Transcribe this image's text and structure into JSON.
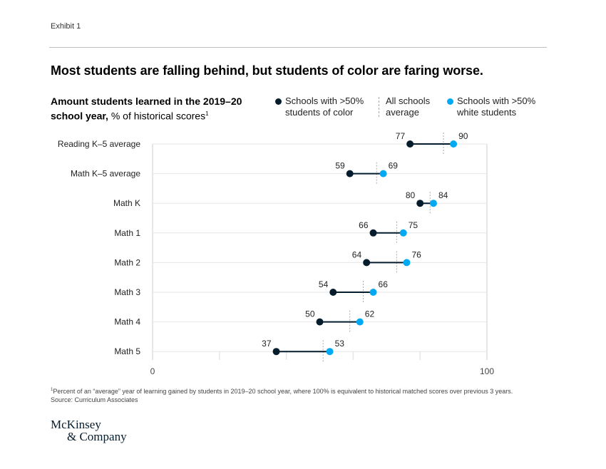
{
  "exhibit_label": "Exhibit 1",
  "title": "Most students are falling behind, but students of color are faring worse.",
  "subtitle": {
    "bold": "Amount students learned in the 2019–20 school year,",
    "normal": " % of historical scores",
    "footnote_marker": "1"
  },
  "legend": {
    "color_schools": {
      "line1": "Schools with >50%",
      "line2": "students of color"
    },
    "average": {
      "line1": "All schools",
      "line2": "average"
    },
    "white_schools": {
      "line1": "Schools with >50%",
      "line2": "white students"
    }
  },
  "colors": {
    "students_of_color": "#051c2c",
    "white_students": "#00a9f4",
    "average": "#aaaaaa",
    "grid": "#e6e6e6"
  },
  "footnote": {
    "marker": "1",
    "text": "Percent of an “average” year of learning gained by students in 2019–20 school year, where 100% is equivalent to historical matched scores over previous 3 years.",
    "source": "Source: Curriculum Associates"
  },
  "logo": {
    "line1": "McKinsey",
    "line2": "& Company"
  },
  "chart_data": {
    "type": "dumbbell",
    "title": "Most students are falling behind, but students of color are faring worse.",
    "subtitle": "Amount students learned in the 2019–20 school year, % of historical scores",
    "xlabel": "",
    "ylabel": "",
    "xlim": [
      0,
      100
    ],
    "x_ticks": [
      0,
      20,
      40,
      60,
      80,
      100
    ],
    "x_tick_labels": [
      "0",
      "",
      "",
      "",
      "",
      "100"
    ],
    "grid": true,
    "legend_position": "top-right",
    "categories": [
      "Reading K–5 average",
      "Math K–5 average",
      "Math K",
      "Math 1",
      "Math 2",
      "Math 3",
      "Math 4",
      "Math 5"
    ],
    "series": [
      {
        "name": "Schools with >50% students of color",
        "values": [
          77,
          59,
          80,
          66,
          64,
          54,
          50,
          37
        ]
      },
      {
        "name": "All schools average",
        "values": [
          87,
          67,
          83,
          73,
          73,
          63,
          59,
          51
        ]
      },
      {
        "name": "Schools with >50% white students",
        "values": [
          90,
          69,
          84,
          75,
          76,
          66,
          62,
          53
        ]
      }
    ]
  }
}
